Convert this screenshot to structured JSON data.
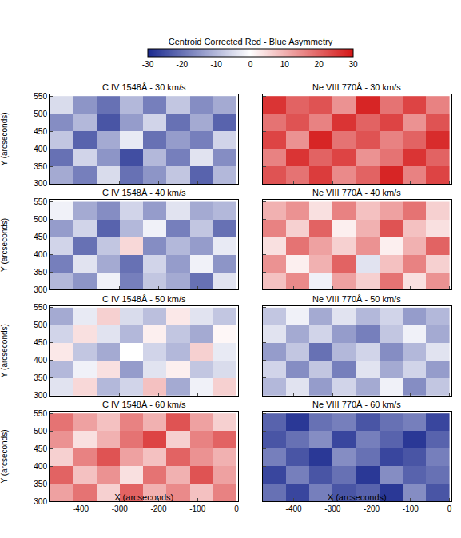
{
  "chart_data": {
    "type": "heatmap",
    "colorbar": {
      "title": "Centroid Corrected Red - Blue Asymmetry",
      "range": [
        -30,
        30
      ],
      "ticks": [
        -30,
        -20,
        -10,
        0,
        10,
        20,
        30
      ]
    },
    "xlabel": "X (arcseconds)",
    "ylabel": "Y (arcseconds)",
    "xlim": [
      -480,
      5
    ],
    "ylim": [
      300,
      555
    ],
    "xticks": [
      -400,
      -300,
      -200,
      -100,
      0
    ],
    "yticks": [
      300,
      350,
      400,
      450,
      500,
      550
    ],
    "x": [
      -450,
      -390,
      -330,
      -270,
      -210,
      -150,
      -90,
      -30
    ],
    "y": [
      325,
      375,
      425,
      475,
      525
    ],
    "panels": [
      {
        "title": "C IV 1548Å - 30 km/s",
        "cells": [
          [
            -12,
            -18,
            -5,
            -20,
            -15,
            -8,
            -22,
            -10
          ],
          [
            -20,
            -6,
            -15,
            -25,
            -10,
            -18,
            -4,
            -16
          ],
          [
            -8,
            -22,
            -12,
            -3,
            -20,
            -14,
            -18,
            -6
          ],
          [
            -16,
            -10,
            -24,
            -14,
            -6,
            -20,
            -12,
            -22
          ],
          [
            -5,
            -15,
            -20,
            -10,
            -18,
            -8,
            -16,
            -12
          ]
        ]
      },
      {
        "title": "Ne VIII 770Å - 30 km/s",
        "cells": [
          [
            22,
            18,
            25,
            15,
            20,
            28,
            16,
            24
          ],
          [
            16,
            26,
            20,
            24,
            14,
            18,
            26,
            20
          ],
          [
            24,
            14,
            28,
            18,
            22,
            16,
            20,
            27
          ],
          [
            18,
            22,
            16,
            26,
            20,
            24,
            14,
            22
          ],
          [
            26,
            20,
            22,
            14,
            28,
            18,
            24,
            16
          ]
        ]
      },
      {
        "title": "C IV 1548Å - 40 km/s",
        "cells": [
          [
            -10,
            -15,
            -2,
            -18,
            -8,
            -12,
            -20,
            -4
          ],
          [
            -18,
            -4,
            -12,
            -20,
            -6,
            -14,
            -2,
            -15
          ],
          [
            -6,
            -20,
            -8,
            5,
            -16,
            -10,
            -14,
            -3
          ],
          [
            -14,
            -6,
            -22,
            -10,
            -2,
            -18,
            -8,
            -20
          ],
          [
            -2,
            -12,
            -16,
            -6,
            -14,
            -4,
            -12,
            -10
          ]
        ]
      },
      {
        "title": "Ne VIII 770Å - 40 km/s",
        "cells": [
          [
            8,
            15,
            -2,
            12,
            6,
            18,
            4,
            14
          ],
          [
            14,
            2,
            10,
            20,
            -4,
            8,
            16,
            6
          ],
          [
            4,
            18,
            12,
            6,
            14,
            2,
            10,
            20
          ],
          [
            16,
            6,
            20,
            2,
            10,
            22,
            8,
            4
          ],
          [
            10,
            14,
            4,
            16,
            8,
            12,
            18,
            6
          ]
        ]
      },
      {
        "title": "C IV 1548Å - 50 km/s",
        "cells": [
          [
            -4,
            5,
            -10,
            -6,
            8,
            -12,
            -2,
            6
          ],
          [
            -10,
            -2,
            4,
            -14,
            -4,
            2,
            -8,
            -5
          ],
          [
            3,
            -8,
            -12,
            0,
            -6,
            -10,
            6,
            -3
          ],
          [
            -6,
            4,
            -4,
            -10,
            2,
            -8,
            -12,
            1
          ],
          [
            -12,
            -3,
            6,
            -5,
            -9,
            3,
            -4,
            -8
          ]
        ]
      },
      {
        "title": "Ne VIII 770Å - 50 km/s",
        "cells": [
          [
            -10,
            -4,
            -14,
            -6,
            -12,
            -2,
            -16,
            -8
          ],
          [
            -6,
            -16,
            -8,
            -18,
            -4,
            -12,
            -6,
            -14
          ],
          [
            -14,
            -8,
            -20,
            -10,
            -6,
            -16,
            -10,
            -4
          ],
          [
            -4,
            -12,
            -6,
            -14,
            -18,
            -8,
            -2,
            -12
          ],
          [
            -8,
            -2,
            -12,
            -4,
            -10,
            -6,
            -14,
            -10
          ]
        ]
      },
      {
        "title": "C IV 1548Å - 60 km/s",
        "cells": [
          [
            12,
            18,
            6,
            20,
            10,
            15,
            8,
            16
          ],
          [
            20,
            8,
            14,
            4,
            18,
            10,
            22,
            12
          ],
          [
            6,
            16,
            22,
            12,
            8,
            20,
            14,
            10
          ],
          [
            14,
            4,
            10,
            18,
            24,
            6,
            16,
            20
          ],
          [
            18,
            12,
            8,
            16,
            10,
            22,
            12,
            6
          ]
        ]
      },
      {
        "title": "Ne VIII 770Å - 60 km/s",
        "cells": [
          [
            -20,
            -26,
            -18,
            -24,
            -22,
            -28,
            -16,
            -24
          ],
          [
            -26,
            -18,
            -24,
            -20,
            -28,
            -16,
            -22,
            -20
          ],
          [
            -18,
            -24,
            -28,
            -16,
            -20,
            -26,
            -24,
            -18
          ],
          [
            -24,
            -20,
            -16,
            -26,
            -18,
            -22,
            -28,
            -22
          ],
          [
            -22,
            -28,
            -20,
            -18,
            -24,
            -20,
            -18,
            -26
          ]
        ]
      }
    ]
  }
}
